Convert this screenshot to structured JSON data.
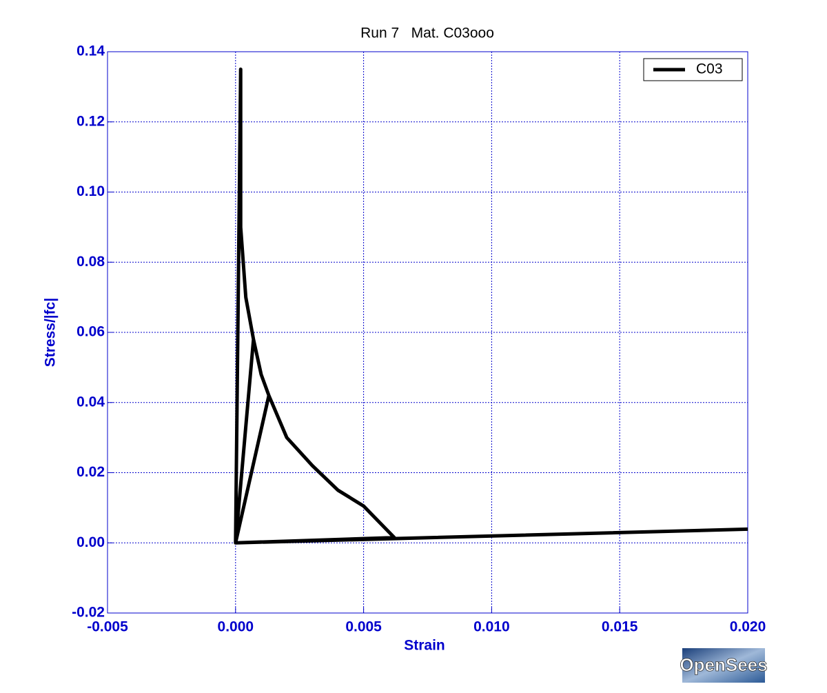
{
  "chart_data": {
    "type": "line",
    "title": "Run 7   Mat. C03ooo",
    "xlabel": "Strain",
    "ylabel": "Stress/|fc|",
    "series": [
      {
        "name": "C03",
        "color": "#000000",
        "x": [
          0,
          0.0002,
          0.0002,
          0.0002,
          0.00025,
          0.0004,
          0.0007,
          0,
          0.0007,
          0.001,
          0.0013,
          0,
          0.0013,
          0.002,
          0.003,
          0.004,
          0.005,
          0.0062,
          0,
          0.02
        ],
        "y": [
          0,
          0.135,
          0.105,
          0.09,
          0.085,
          0.07,
          0.058,
          0,
          0.058,
          0.048,
          0.042,
          0,
          0.042,
          0.03,
          0.022,
          0.015,
          0.0105,
          0.0015,
          0,
          0.0039
        ]
      }
    ],
    "xlim": [
      -0.005,
      0.02
    ],
    "ylim": [
      -0.02,
      0.14
    ],
    "xticks": [
      -0.005,
      {
        "value": 0,
        "label": "0.000"
      },
      0.005,
      {
        "value": 0.01,
        "label": "0.010"
      },
      0.015,
      {
        "value": 0.02,
        "label": "0.020"
      }
    ],
    "yticks": [
      -0.02,
      {
        "value": 0,
        "label": "0.00"
      },
      0.02,
      0.04,
      0.06,
      0.08,
      {
        "value": 0.1,
        "label": "0.10"
      },
      0.12,
      0.14
    ],
    "grid": true,
    "legend": "upper-right"
  },
  "logo": "OpenSees"
}
